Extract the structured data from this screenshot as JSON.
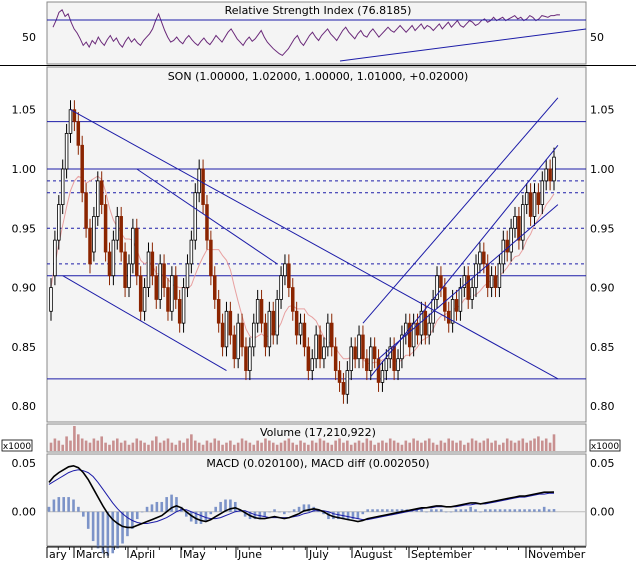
{
  "chart_data": [
    {
      "type": "line",
      "title": "Relative Strength Index (76.8185)",
      "y_ticks": [
        50
      ],
      "ylim": [
        20,
        90
      ],
      "series": [
        {
          "name": "RSI",
          "color": "#6b2a7a",
          "x": [
            0,
            3,
            6,
            9,
            12,
            15,
            18,
            21,
            24,
            27,
            30,
            33,
            36,
            39,
            42,
            45,
            48,
            51,
            54,
            57,
            60,
            63,
            66,
            69,
            72,
            75,
            78,
            81,
            84,
            87,
            90,
            93,
            96,
            99,
            102,
            105,
            108,
            111,
            114,
            117,
            120,
            123,
            126,
            129,
            132,
            135,
            138,
            141,
            144,
            147,
            150,
            153,
            156,
            159,
            162,
            165,
            168,
            171,
            174,
            177,
            180,
            183,
            186,
            189,
            192,
            195,
            198,
            201,
            204,
            207,
            210,
            213,
            216,
            219,
            222,
            225,
            228,
            231,
            234,
            237,
            240,
            243,
            246,
            249,
            252,
            255,
            258,
            261,
            264,
            267,
            270,
            273,
            276,
            279,
            282,
            285,
            288,
            291,
            294,
            297,
            300,
            303,
            306,
            309,
            312,
            315,
            318,
            321,
            324,
            327,
            330,
            333,
            336,
            339,
            342,
            345,
            348,
            351,
            354,
            357,
            360,
            363,
            366,
            369,
            372,
            375,
            378,
            381,
            384,
            387,
            390,
            393,
            396,
            399,
            402,
            405,
            408,
            411,
            414,
            417,
            420,
            423,
            426,
            429,
            432,
            435,
            438,
            441,
            444,
            447,
            450,
            453,
            456,
            459,
            462,
            465,
            468,
            471,
            474,
            477,
            480,
            483,
            486,
            489,
            492,
            495,
            498,
            501,
            504
          ],
          "values": [
            62,
            70,
            80,
            83,
            75,
            78,
            68,
            60,
            55,
            48,
            40,
            44,
            38,
            46,
            42,
            50,
            44,
            40,
            47,
            52,
            45,
            49,
            42,
            38,
            45,
            50,
            44,
            48,
            43,
            40,
            46,
            50,
            54,
            60,
            70,
            78,
            68,
            58,
            50,
            44,
            46,
            50,
            45,
            42,
            48,
            52,
            47,
            43,
            40,
            45,
            49,
            44,
            41,
            46,
            52,
            48,
            44,
            50,
            56,
            60,
            54,
            48,
            44,
            40,
            46,
            50,
            45,
            48,
            53,
            58,
            50,
            44,
            40,
            36,
            33,
            30,
            28,
            32,
            36,
            42,
            48,
            52,
            44,
            40,
            46,
            52,
            56,
            50,
            46,
            52,
            56,
            60,
            54,
            50,
            46,
            52,
            58,
            62,
            56,
            52,
            48,
            54,
            58,
            52,
            50,
            56,
            60,
            55,
            50,
            54,
            58,
            62,
            58,
            56,
            60,
            64,
            60,
            56,
            60,
            64,
            58,
            62,
            66,
            60,
            64,
            62,
            58,
            62,
            66,
            60,
            64,
            68,
            62,
            66,
            70,
            64,
            62,
            66,
            70,
            68,
            64,
            66,
            70,
            72,
            68,
            70,
            74,
            70,
            72,
            74,
            70,
            72,
            74,
            76,
            72,
            74,
            70,
            72,
            76,
            74,
            70,
            72,
            76,
            75,
            74,
            76,
            76,
            77,
            76.8
          ]
        }
      ]
    },
    {
      "type": "candlestick",
      "title": "SON (1.00000, 1.02000, 1.00000, 1.01000, +0.02000)",
      "y_ticks": [
        0.8,
        0.85,
        0.9,
        0.95,
        1.0,
        1.05
      ],
      "ylim": [
        0.79,
        1.07
      ],
      "x_axis_labels": [
        "ary",
        "March",
        "April",
        "May",
        "June",
        "July",
        "August",
        "September",
        "November"
      ],
      "horizontal_lines_solid": [
        1.04,
        1.0,
        0.91,
        0.823
      ],
      "horizontal_lines_dashed": [
        0.99,
        0.98,
        0.95,
        0.92
      ],
      "close": [
        0.9,
        0.94,
        0.97,
        1.0,
        1.03,
        1.05,
        1.04,
        1.02,
        0.98,
        0.95,
        0.92,
        0.96,
        0.99,
        0.97,
        0.93,
        0.91,
        0.94,
        0.96,
        0.93,
        0.9,
        0.92,
        0.95,
        0.91,
        0.88,
        0.9,
        0.93,
        0.91,
        0.89,
        0.92,
        0.9,
        0.88,
        0.91,
        0.89,
        0.87,
        0.9,
        0.92,
        0.94,
        0.98,
        1.0,
        0.97,
        0.94,
        0.91,
        0.89,
        0.87,
        0.85,
        0.88,
        0.86,
        0.84,
        0.87,
        0.85,
        0.83,
        0.85,
        0.87,
        0.89,
        0.87,
        0.85,
        0.88,
        0.86,
        0.89,
        0.91,
        0.92,
        0.9,
        0.88,
        0.86,
        0.87,
        0.85,
        0.83,
        0.84,
        0.86,
        0.84,
        0.85,
        0.87,
        0.85,
        0.83,
        0.82,
        0.81,
        0.83,
        0.85,
        0.84,
        0.86,
        0.84,
        0.83,
        0.85,
        0.84,
        0.82,
        0.83,
        0.84,
        0.85,
        0.83,
        0.84,
        0.86,
        0.87,
        0.85,
        0.87,
        0.86,
        0.88,
        0.86,
        0.87,
        0.89,
        0.91,
        0.9,
        0.88,
        0.87,
        0.89,
        0.88,
        0.9,
        0.91,
        0.89,
        0.9,
        0.92,
        0.93,
        0.92,
        0.9,
        0.91,
        0.9,
        0.92,
        0.94,
        0.93,
        0.95,
        0.96,
        0.94,
        0.97,
        0.98,
        0.96,
        0.98,
        0.97,
        0.99,
        1.0,
        0.99,
        1.01
      ],
      "open": [
        0.88,
        0.91,
        0.94,
        0.97,
        1.0,
        1.03,
        1.05,
        1.04,
        1.02,
        0.98,
        0.95,
        0.93,
        0.96,
        0.99,
        0.97,
        0.93,
        0.91,
        0.94,
        0.96,
        0.93,
        0.9,
        0.92,
        0.95,
        0.91,
        0.88,
        0.9,
        0.93,
        0.91,
        0.89,
        0.92,
        0.9,
        0.88,
        0.91,
        0.89,
        0.87,
        0.9,
        0.92,
        0.94,
        0.98,
        1.0,
        0.97,
        0.94,
        0.91,
        0.89,
        0.87,
        0.85,
        0.88,
        0.86,
        0.84,
        0.87,
        0.85,
        0.83,
        0.85,
        0.87,
        0.89,
        0.87,
        0.85,
        0.88,
        0.86,
        0.89,
        0.91,
        0.92,
        0.9,
        0.88,
        0.86,
        0.87,
        0.85,
        0.83,
        0.84,
        0.86,
        0.84,
        0.85,
        0.87,
        0.85,
        0.83,
        0.82,
        0.81,
        0.83,
        0.85,
        0.84,
        0.86,
        0.84,
        0.83,
        0.85,
        0.84,
        0.82,
        0.83,
        0.84,
        0.85,
        0.83,
        0.84,
        0.86,
        0.87,
        0.85,
        0.87,
        0.86,
        0.88,
        0.86,
        0.87,
        0.89,
        0.91,
        0.9,
        0.88,
        0.87,
        0.89,
        0.88,
        0.9,
        0.91,
        0.89,
        0.9,
        0.92,
        0.93,
        0.92,
        0.9,
        0.91,
        0.9,
        0.92,
        0.94,
        0.93,
        0.95,
        0.96,
        0.94,
        0.97,
        0.98,
        0.96,
        0.98,
        0.97,
        0.99,
        1.0,
        0.99
      ],
      "trendlines": [
        {
          "from": [
            5,
            1.05
          ],
          "to": [
            130,
            0.823
          ]
        },
        {
          "from": [
            3,
            0.91
          ],
          "to": [
            45,
            0.83
          ]
        },
        {
          "from": [
            80,
            0.87
          ],
          "to": [
            130,
            1.06
          ]
        },
        {
          "from": [
            82,
            0.825
          ],
          "to": [
            130,
            1.02
          ]
        },
        {
          "from": [
            84,
            0.84
          ],
          "to": [
            130,
            0.97
          ]
        },
        {
          "from": [
            22,
            1.0
          ],
          "to": [
            58,
            0.92
          ]
        }
      ],
      "colors": {
        "up": "#000000",
        "down": "#8b2500",
        "trend": "#1c1ca8",
        "ma": "#e8a0a0"
      }
    },
    {
      "type": "bar",
      "title": "Volume (17,210,922)",
      "unit_label": "x1000",
      "values": [
        4,
        6,
        5,
        3,
        7,
        5,
        12,
        8,
        6,
        5,
        4,
        6,
        5,
        7,
        4,
        3,
        5,
        6,
        4,
        5,
        3,
        4,
        6,
        5,
        4,
        3,
        5,
        7,
        4,
        5,
        6,
        4,
        3,
        5,
        4,
        6,
        8,
        5,
        4,
        3,
        5,
        4,
        6,
        5,
        3,
        4,
        5,
        3,
        4,
        6,
        5,
        4,
        3,
        5,
        4,
        6,
        5,
        4,
        3,
        4,
        5,
        6,
        4,
        3,
        5,
        4,
        3,
        5,
        4,
        6,
        5,
        4,
        3,
        5,
        6,
        4,
        5,
        3,
        4,
        5,
        4,
        6,
        5,
        3,
        4,
        5,
        4,
        6,
        5,
        4,
        3,
        5,
        4,
        6,
        5,
        4,
        5,
        6,
        4,
        3,
        5,
        4,
        6,
        5,
        4,
        5,
        3,
        4,
        6,
        5,
        4,
        5,
        6,
        4,
        5,
        3,
        4,
        6,
        5,
        4,
        5,
        6,
        4,
        5,
        6,
        7,
        5,
        6,
        4,
        8
      ],
      "color": "#c89090"
    },
    {
      "type": "line",
      "title": "MACD (0.020100), MACD diff (0.002050)",
      "y_ticks": [
        0.0,
        0.05
      ],
      "ylim": [
        -0.033,
        0.057
      ],
      "series": [
        {
          "name": "MACD",
          "color": "#000000"
        },
        {
          "name": "MACD diff",
          "color": "#1c1ca8"
        }
      ],
      "macd": [
        0.03,
        0.036,
        0.04,
        0.043,
        0.046,
        0.047,
        0.045,
        0.04,
        0.033,
        0.024,
        0.015,
        0.006,
        -0.002,
        -0.008,
        -0.012,
        -0.015,
        -0.016,
        -0.016,
        -0.014,
        -0.012,
        -0.01,
        -0.008,
        -0.006,
        -0.004,
        0.0,
        0.004,
        0.006,
        0.004,
        0.0,
        -0.004,
        -0.007,
        -0.009,
        -0.01,
        -0.008,
        -0.005,
        -0.002,
        0.001,
        0.003,
        0.004,
        0.002,
        -0.001,
        -0.004,
        -0.006,
        -0.007,
        -0.007,
        -0.006,
        -0.005,
        -0.006,
        -0.007,
        -0.006,
        -0.004,
        -0.002,
        0.001,
        0.002,
        0.003,
        0.002,
        0.0,
        -0.003,
        -0.005,
        -0.006,
        -0.007,
        -0.008,
        -0.009,
        -0.01,
        -0.009,
        -0.007,
        -0.006,
        -0.005,
        -0.004,
        -0.003,
        -0.002,
        -0.001,
        0.0,
        0.001,
        0.002,
        0.003,
        0.004,
        0.004,
        0.005,
        0.006,
        0.006,
        0.005,
        0.005,
        0.006,
        0.007,
        0.008,
        0.009,
        0.009,
        0.008,
        0.009,
        0.01,
        0.011,
        0.012,
        0.013,
        0.014,
        0.015,
        0.016,
        0.016,
        0.017,
        0.018,
        0.019,
        0.02,
        0.02,
        0.0201
      ],
      "signal": [
        0.028,
        0.031,
        0.034,
        0.037,
        0.04,
        0.042,
        0.043,
        0.042,
        0.04,
        0.036,
        0.03,
        0.023,
        0.016,
        0.009,
        0.003,
        -0.002,
        -0.006,
        -0.009,
        -0.011,
        -0.012,
        -0.012,
        -0.011,
        -0.01,
        -0.008,
        -0.006,
        -0.003,
        0.0,
        0.002,
        0.002,
        0.0,
        -0.002,
        -0.004,
        -0.006,
        -0.007,
        -0.007,
        -0.006,
        -0.004,
        -0.002,
        0.0,
        0.001,
        0.001,
        -0.001,
        -0.003,
        -0.004,
        -0.005,
        -0.006,
        -0.006,
        -0.006,
        -0.006,
        -0.006,
        -0.005,
        -0.004,
        -0.002,
        -0.001,
        0.001,
        0.001,
        0.001,
        0.0,
        -0.002,
        -0.003,
        -0.004,
        -0.005,
        -0.006,
        -0.007,
        -0.008,
        -0.008,
        -0.007,
        -0.006,
        -0.005,
        -0.004,
        -0.003,
        -0.002,
        -0.001,
        0.0,
        0.001,
        0.002,
        0.003,
        0.004,
        0.004,
        0.005,
        0.005,
        0.005,
        0.005,
        0.005,
        0.006,
        0.007,
        0.007,
        0.008,
        0.008,
        0.008,
        0.009,
        0.01,
        0.011,
        0.012,
        0.013,
        0.014,
        0.015,
        0.015,
        0.016,
        0.017,
        0.018,
        0.018,
        0.019,
        0.019
      ]
    }
  ]
}
